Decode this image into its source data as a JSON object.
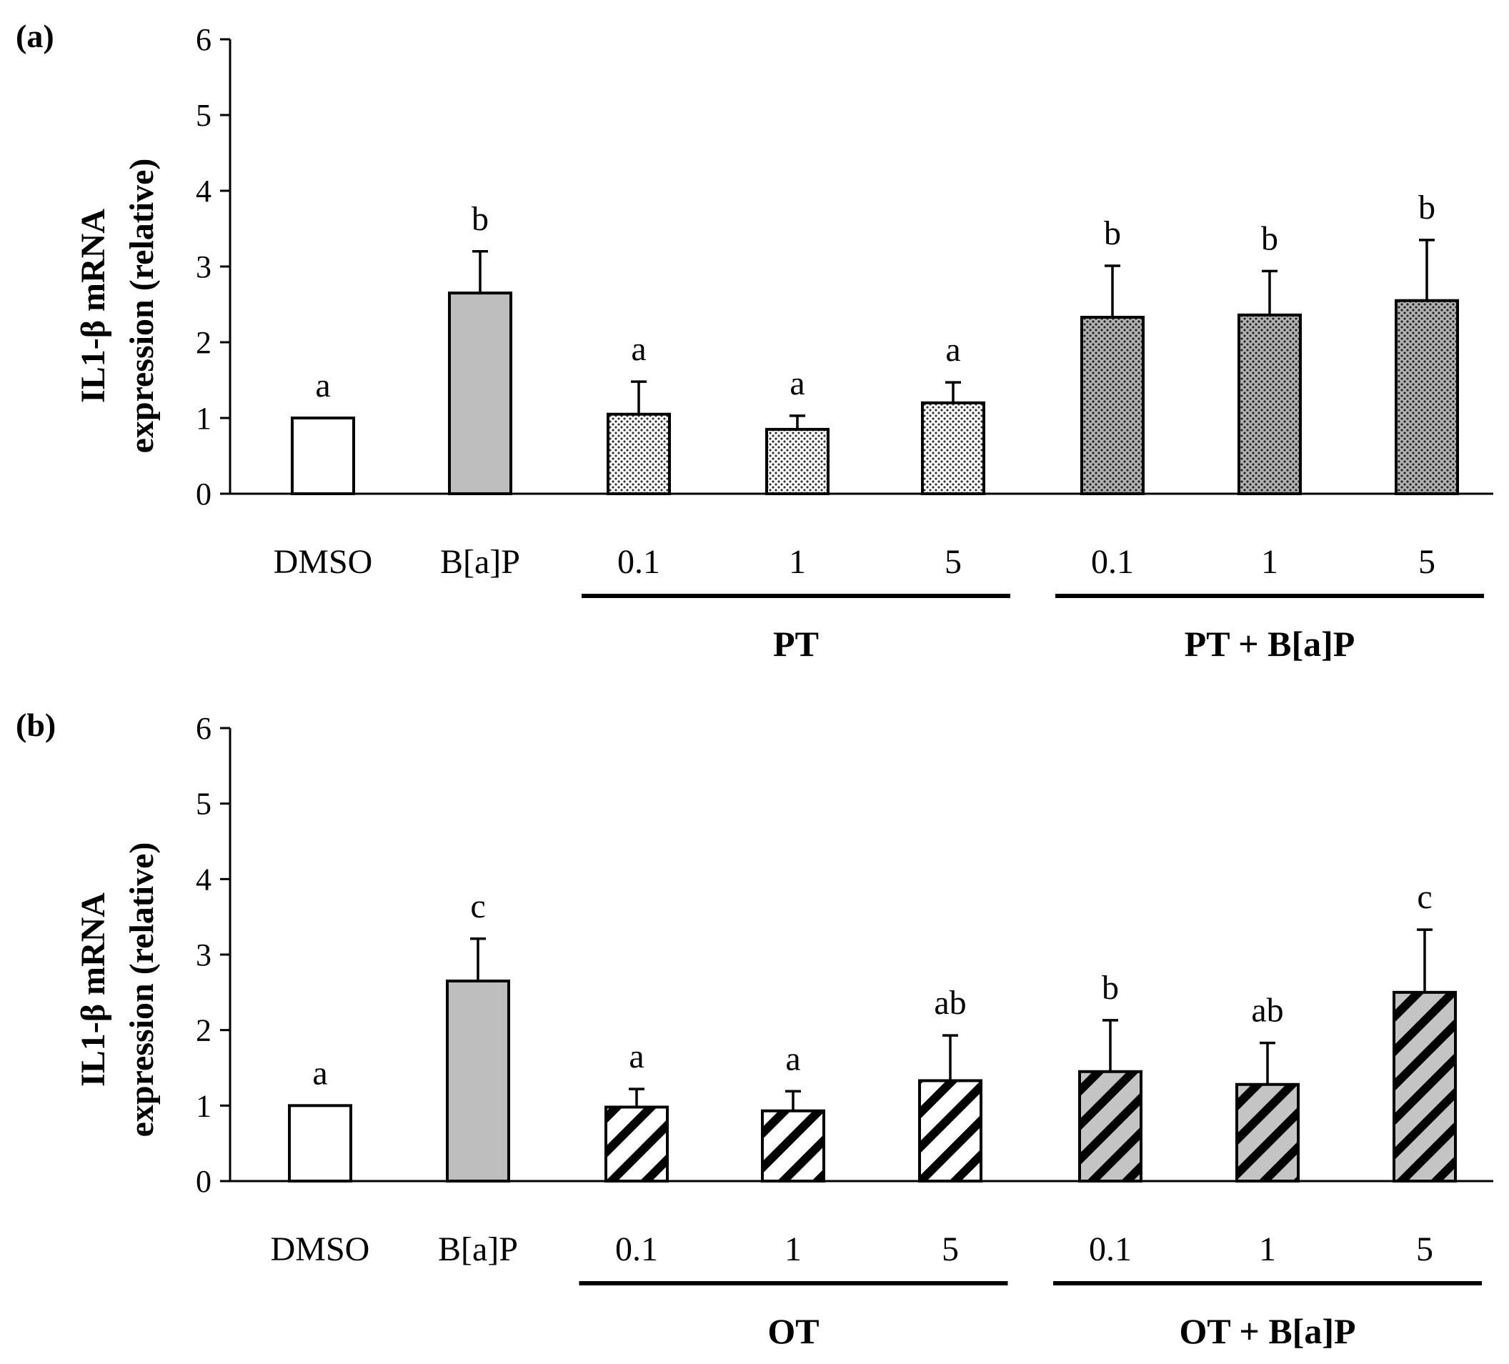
{
  "figure": "IL1-β mRNA expression, panels (a) and (b)",
  "colors": {
    "bar_white": "#ffffff",
    "bar_gray": "#bdbdbd",
    "dot_light_bg": "#ffffff",
    "dot_dark_bg": "#b3b3b3",
    "hatch_gray_bg": "#c4c4c4",
    "ink": "#000000"
  },
  "chart_data": [
    {
      "type": "bar",
      "panel_label": "(a)",
      "ylabel_line1": "IL1-β mRNA",
      "ylabel_line2": "expression (relative)",
      "ylim": [
        0,
        6
      ],
      "yticks": [
        "0",
        "1",
        "2",
        "3",
        "4",
        "5",
        "6"
      ],
      "categories": [
        "DMSO",
        "B[a]P",
        "0.1",
        "1",
        "5",
        "0.1",
        "1",
        "5"
      ],
      "values": [
        1.0,
        2.65,
        1.05,
        0.85,
        1.2,
        2.33,
        2.36,
        2.55
      ],
      "errors": [
        0,
        0.55,
        0.43,
        0.18,
        0.27,
        0.68,
        0.58,
        0.8
      ],
      "significance": [
        "a",
        "b",
        "a",
        "a",
        "a",
        "b",
        "b",
        "b"
      ],
      "fills": [
        "white",
        "gray",
        "dots_light",
        "dots_light",
        "dots_light",
        "dots_dark",
        "dots_dark",
        "dots_dark"
      ],
      "groups": [
        {
          "label": "PT",
          "members": [
            2,
            4
          ]
        },
        {
          "label": "PT + B[a]P",
          "members": [
            5,
            7
          ]
        }
      ]
    },
    {
      "type": "bar",
      "panel_label": "(b)",
      "ylabel_line1": "IL1-β mRNA",
      "ylabel_line2": "expression (relative)",
      "ylim": [
        0,
        6
      ],
      "yticks": [
        "0",
        "1",
        "2",
        "3",
        "4",
        "5",
        "6"
      ],
      "categories": [
        "DMSO",
        "B[a]P",
        "0.1",
        "1",
        "5",
        "0.1",
        "1",
        "5"
      ],
      "values": [
        1.0,
        2.65,
        0.98,
        0.93,
        1.33,
        1.45,
        1.28,
        2.5
      ],
      "errors": [
        0,
        0.56,
        0.24,
        0.26,
        0.6,
        0.68,
        0.55,
        0.83
      ],
      "significance": [
        "a",
        "c",
        "a",
        "a",
        "ab",
        "b",
        "ab",
        "c"
      ],
      "fills": [
        "white",
        "gray",
        "hatch_light",
        "hatch_light",
        "hatch_light",
        "hatch_dark",
        "hatch_dark",
        "hatch_dark"
      ],
      "groups": [
        {
          "label": "OT",
          "members": [
            2,
            4
          ]
        },
        {
          "label": "OT + B[a]P",
          "members": [
            5,
            7
          ]
        }
      ]
    }
  ]
}
